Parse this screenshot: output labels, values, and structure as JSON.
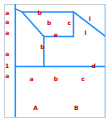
{
  "chart_data": {
    "type": "line",
    "xlim": [
      -0.8,
      6.67
    ],
    "ylim": [
      0,
      1600
    ],
    "tick_labels": false,
    "series": [
      {
        "color": "#1e90ff",
        "x": [
          0.0,
          0.5
        ],
        "y": [
          1538,
          1495
        ]
      },
      {
        "color": "#1e90ff",
        "x": [
          0.5,
          2.11
        ],
        "y": [
          1495,
          1148
        ]
      },
      {
        "color": "#1e90ff",
        "x": [
          0.5,
          4.3
        ],
        "y": [
          1495,
          1495
        ]
      },
      {
        "color": "#1e90ff",
        "x": [
          4.3,
          4.3
        ],
        "y": [
          1495,
          1148
        ]
      },
      {
        "color": "#1e90ff",
        "x": [
          4.3,
          6.67
        ],
        "y": [
          1495,
          1148
        ]
      },
      {
        "color": "#1e90ff",
        "x": [
          2.11,
          4.3
        ],
        "y": [
          1148,
          1148
        ]
      },
      {
        "color": "#1e90ff",
        "x": [
          2.11,
          2.11
        ],
        "y": [
          1148,
          723
        ]
      },
      {
        "color": "#1e90ff",
        "x": [
          0.0,
          6.67
        ],
        "y": [
          723,
          723
        ]
      },
      {
        "color": "#1e90ff",
        "x": [
          6.67,
          6.67
        ],
        "y": [
          0,
          1600
        ]
      },
      {
        "color": "#1e90ff",
        "x": [
          0.0,
          0.0
        ],
        "y": [
          0,
          1600
        ]
      }
    ],
    "annotations": [
      {
        "text": "a",
        "x": -0.6,
        "y": 1480,
        "color": "#cc0000"
      },
      {
        "text": "a",
        "x": -0.6,
        "y": 1350,
        "color": "#cc0000"
      },
      {
        "text": "a",
        "x": -0.6,
        "y": 1200,
        "color": "#cc0000"
      },
      {
        "text": "a",
        "x": -0.6,
        "y": 900,
        "color": "#cc0000"
      },
      {
        "text": "1",
        "x": -0.6,
        "y": 730,
        "color": "#cc0000"
      },
      {
        "text": "a",
        "x": -0.6,
        "y": 580,
        "color": "#cc0000"
      },
      {
        "text": "b",
        "x": 1.8,
        "y": 1480,
        "color": "#cc0000"
      },
      {
        "text": "b",
        "x": 2.5,
        "y": 1340,
        "color": "#cc0000"
      },
      {
        "text": "b",
        "x": 2.0,
        "y": 1000,
        "color": "#cc0000"
      },
      {
        "text": "c",
        "x": 4.0,
        "y": 1340,
        "color": "#cc0000"
      },
      {
        "text": "e",
        "x": 3.0,
        "y": 1160,
        "color": "#cc0000"
      },
      {
        "text": "l",
        "x": 5.2,
        "y": 1200,
        "color": "#cc0000"
      },
      {
        "text": "l",
        "x": 5.5,
        "y": 1400,
        "color": "#cc0000"
      },
      {
        "text": "a",
        "x": 1.2,
        "y": 550,
        "color": "#cc0000"
      },
      {
        "text": "b",
        "x": 3.0,
        "y": 550,
        "color": "#cc0000"
      },
      {
        "text": "c",
        "x": 5.0,
        "y": 550,
        "color": "#cc0000"
      },
      {
        "text": "d",
        "x": 5.8,
        "y": 730,
        "color": "#cc0000"
      },
      {
        "text": "A",
        "x": 1.5,
        "y": 130,
        "color": "#cc0000"
      },
      {
        "text": "B",
        "x": 4.5,
        "y": 130,
        "color": "#cc0000"
      }
    ]
  }
}
